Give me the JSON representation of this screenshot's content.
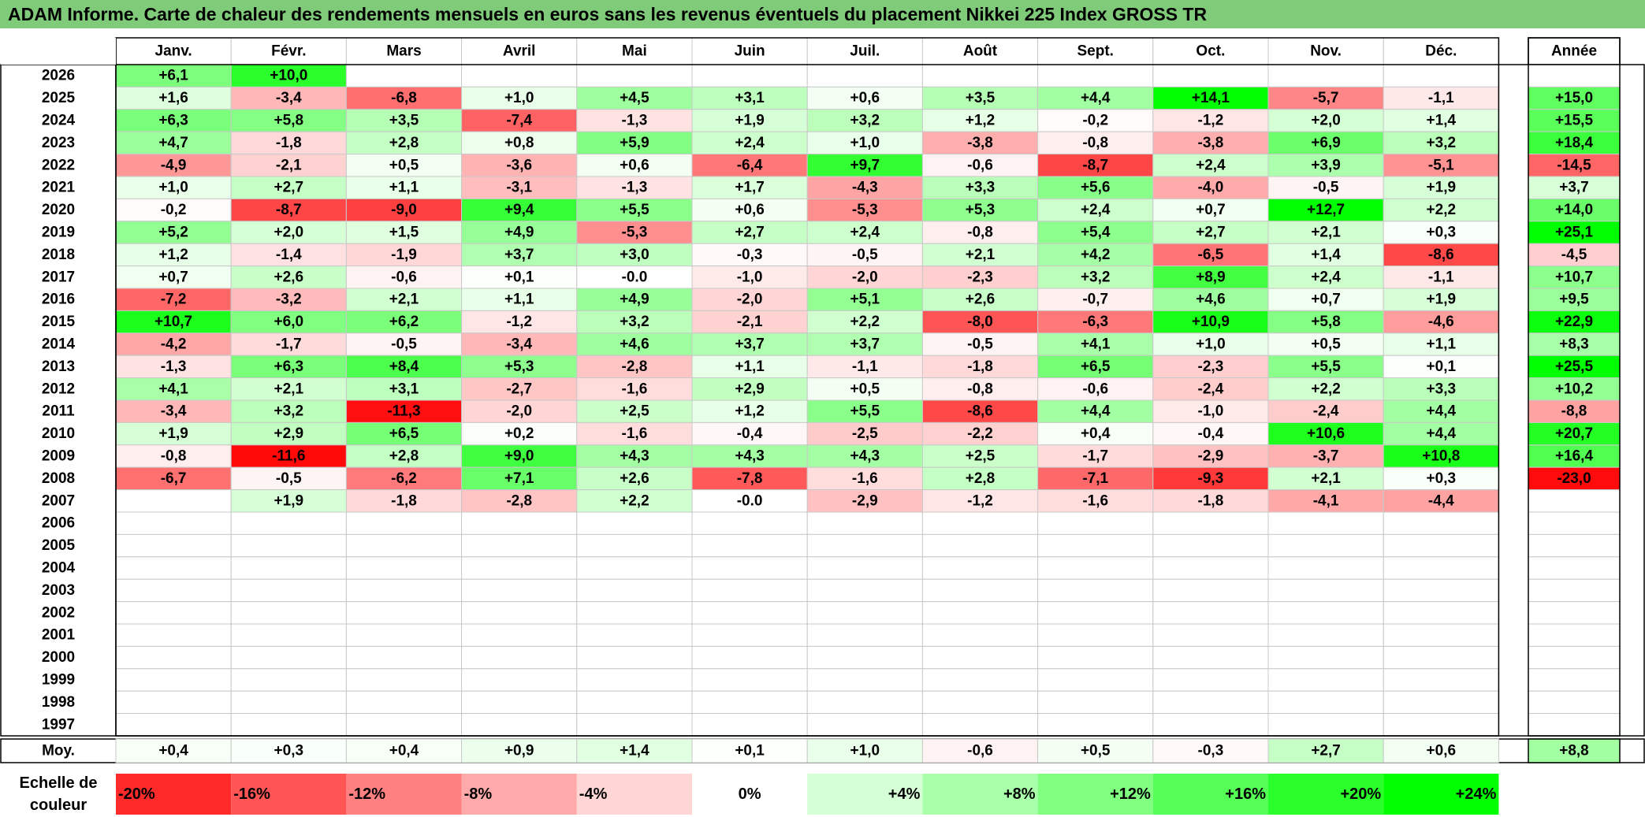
{
  "title": "ADAM Informe. Carte de chaleur des rendements mensuels en euros sans les revenus éventuels du placement Nikkei 225 Index GROSS TR",
  "chart_data": {
    "type": "heatmap",
    "months": [
      "Janv.",
      "Févr.",
      "Mars",
      "Avril",
      "Mai",
      "Juin",
      "Juil.",
      "Août",
      "Sept.",
      "Oct.",
      "Nov.",
      "Déc."
    ],
    "annual_header": "Année",
    "rows": [
      {
        "year": "2026",
        "values": [
          6.1,
          10.0,
          null,
          null,
          null,
          null,
          null,
          null,
          null,
          null,
          null,
          null
        ],
        "annual": null
      },
      {
        "year": "2025",
        "values": [
          1.6,
          -3.4,
          -6.8,
          1.0,
          4.5,
          3.1,
          0.6,
          3.5,
          4.4,
          14.1,
          -5.7,
          -1.1
        ],
        "annual": 15.0
      },
      {
        "year": "2024",
        "values": [
          6.3,
          5.8,
          3.5,
          -7.4,
          -1.3,
          1.9,
          3.2,
          1.2,
          -0.2,
          -1.2,
          2.0,
          1.4
        ],
        "annual": 15.5
      },
      {
        "year": "2023",
        "values": [
          4.7,
          -1.8,
          2.8,
          0.8,
          5.9,
          2.4,
          1.0,
          -3.8,
          -0.8,
          -3.8,
          6.9,
          3.2
        ],
        "annual": 18.4
      },
      {
        "year": "2022",
        "values": [
          -4.9,
          -2.1,
          0.5,
          -3.6,
          0.6,
          -6.4,
          9.7,
          -0.6,
          -8.7,
          2.4,
          3.9,
          -5.1
        ],
        "annual": -14.5
      },
      {
        "year": "2021",
        "values": [
          1.0,
          2.7,
          1.1,
          -3.1,
          -1.3,
          1.7,
          -4.3,
          3.3,
          5.6,
          -4.0,
          -0.5,
          1.9
        ],
        "annual": 3.7
      },
      {
        "year": "2020",
        "values": [
          -0.2,
          -8.7,
          -9.0,
          9.4,
          5.5,
          0.6,
          -5.3,
          5.3,
          2.4,
          0.7,
          12.7,
          2.2
        ],
        "annual": 14.0
      },
      {
        "year": "2019",
        "values": [
          5.2,
          2.0,
          1.5,
          4.9,
          -5.3,
          2.7,
          2.4,
          -0.8,
          5.4,
          2.7,
          2.1,
          0.3
        ],
        "annual": 25.1
      },
      {
        "year": "2018",
        "values": [
          1.2,
          -1.4,
          -1.9,
          3.7,
          3.0,
          -0.3,
          -0.5,
          2.1,
          4.2,
          -6.5,
          1.4,
          -8.6
        ],
        "annual": -4.5
      },
      {
        "year": "2017",
        "values": [
          0.7,
          2.6,
          -0.6,
          0.1,
          "-0.0",
          -1.0,
          -2.0,
          -2.3,
          3.2,
          8.9,
          2.4,
          -1.1
        ],
        "annual": 10.7
      },
      {
        "year": "2016",
        "values": [
          -7.2,
          -3.2,
          2.1,
          1.1,
          4.9,
          -2.0,
          5.1,
          2.6,
          -0.7,
          4.6,
          0.7,
          1.9
        ],
        "annual": 9.5
      },
      {
        "year": "2015",
        "values": [
          10.7,
          6.0,
          6.2,
          -1.2,
          3.2,
          -2.1,
          2.2,
          -8.0,
          -6.3,
          10.9,
          5.8,
          -4.6
        ],
        "annual": 22.9
      },
      {
        "year": "2014",
        "values": [
          -4.2,
          -1.7,
          -0.5,
          -3.4,
          4.6,
          3.7,
          3.7,
          -0.5,
          4.1,
          1.0,
          0.5,
          1.1
        ],
        "annual": 8.3
      },
      {
        "year": "2013",
        "values": [
          -1.3,
          6.3,
          8.4,
          5.3,
          -2.8,
          1.1,
          -1.1,
          -1.8,
          6.5,
          -2.3,
          5.5,
          0.1
        ],
        "annual": 25.5
      },
      {
        "year": "2012",
        "values": [
          4.1,
          2.1,
          3.1,
          -2.7,
          -1.6,
          2.9,
          0.5,
          -0.8,
          -0.6,
          -2.4,
          2.2,
          3.3
        ],
        "annual": 10.2
      },
      {
        "year": "2011",
        "values": [
          -3.4,
          3.2,
          -11.3,
          -2.0,
          2.5,
          1.2,
          5.5,
          -8.6,
          4.4,
          -1.0,
          -2.4,
          4.4
        ],
        "annual": -8.8
      },
      {
        "year": "2010",
        "values": [
          1.9,
          2.9,
          6.5,
          0.2,
          -1.6,
          -0.4,
          -2.5,
          -2.2,
          0.4,
          -0.4,
          10.6,
          4.4
        ],
        "annual": 20.7
      },
      {
        "year": "2009",
        "values": [
          -0.8,
          -11.6,
          2.8,
          9.0,
          4.3,
          4.3,
          4.3,
          2.5,
          -1.7,
          -2.9,
          -3.7,
          10.8
        ],
        "annual": 16.4
      },
      {
        "year": "2008",
        "values": [
          -6.7,
          -0.5,
          -6.2,
          7.1,
          2.6,
          -7.8,
          -1.6,
          2.8,
          -7.1,
          -9.3,
          2.1,
          0.3
        ],
        "annual": -23.0
      },
      {
        "year": "2007",
        "values": [
          null,
          1.9,
          -1.8,
          -2.8,
          2.2,
          "-0.0",
          -2.9,
          -1.2,
          -1.6,
          -1.8,
          -4.1,
          -4.4
        ],
        "annual": null
      },
      {
        "year": "2006",
        "values": [
          null,
          null,
          null,
          null,
          null,
          null,
          null,
          null,
          null,
          null,
          null,
          null
        ],
        "annual": null
      },
      {
        "year": "2005",
        "values": [
          null,
          null,
          null,
          null,
          null,
          null,
          null,
          null,
          null,
          null,
          null,
          null
        ],
        "annual": null
      },
      {
        "year": "2004",
        "values": [
          null,
          null,
          null,
          null,
          null,
          null,
          null,
          null,
          null,
          null,
          null,
          null
        ],
        "annual": null
      },
      {
        "year": "2003",
        "values": [
          null,
          null,
          null,
          null,
          null,
          null,
          null,
          null,
          null,
          null,
          null,
          null
        ],
        "annual": null
      },
      {
        "year": "2002",
        "values": [
          null,
          null,
          null,
          null,
          null,
          null,
          null,
          null,
          null,
          null,
          null,
          null
        ],
        "annual": null
      },
      {
        "year": "2001",
        "values": [
          null,
          null,
          null,
          null,
          null,
          null,
          null,
          null,
          null,
          null,
          null,
          null
        ],
        "annual": null
      },
      {
        "year": "2000",
        "values": [
          null,
          null,
          null,
          null,
          null,
          null,
          null,
          null,
          null,
          null,
          null,
          null
        ],
        "annual": null
      },
      {
        "year": "1999",
        "values": [
          null,
          null,
          null,
          null,
          null,
          null,
          null,
          null,
          null,
          null,
          null,
          null
        ],
        "annual": null
      },
      {
        "year": "1998",
        "values": [
          null,
          null,
          null,
          null,
          null,
          null,
          null,
          null,
          null,
          null,
          null,
          null
        ],
        "annual": null
      },
      {
        "year": "1997",
        "values": [
          null,
          null,
          null,
          null,
          null,
          null,
          null,
          null,
          null,
          null,
          null,
          null
        ],
        "annual": null
      }
    ],
    "average": {
      "label": "Moy.",
      "values": [
        0.4,
        0.3,
        0.4,
        0.9,
        1.4,
        0.1,
        1.0,
        -0.6,
        0.5,
        -0.3,
        2.7,
        0.6
      ],
      "annual": 8.8
    },
    "scale": {
      "label": [
        "Echelle de",
        "couleur"
      ],
      "steps": [
        {
          "text": "-20%",
          "value": -20
        },
        {
          "text": "-16%",
          "value": -16
        },
        {
          "text": "-12%",
          "value": -12
        },
        {
          "text": "-8%",
          "value": -8
        },
        {
          "text": "-4%",
          "value": -4
        },
        {
          "text": "0%",
          "value": 0
        },
        {
          "text": "+4%",
          "value": 4
        },
        {
          "text": "+8%",
          "value": 8
        },
        {
          "text": "+12%",
          "value": 12
        },
        {
          "text": "+16%",
          "value": 16
        },
        {
          "text": "+20%",
          "value": 20
        },
        {
          "text": "+24%",
          "value": 24
        }
      ]
    },
    "colors": {
      "negative_max": "#ff0000",
      "neutral": "#ffffff",
      "positive_max": "#00ff00",
      "title_bg": "#7fcb7a"
    }
  }
}
